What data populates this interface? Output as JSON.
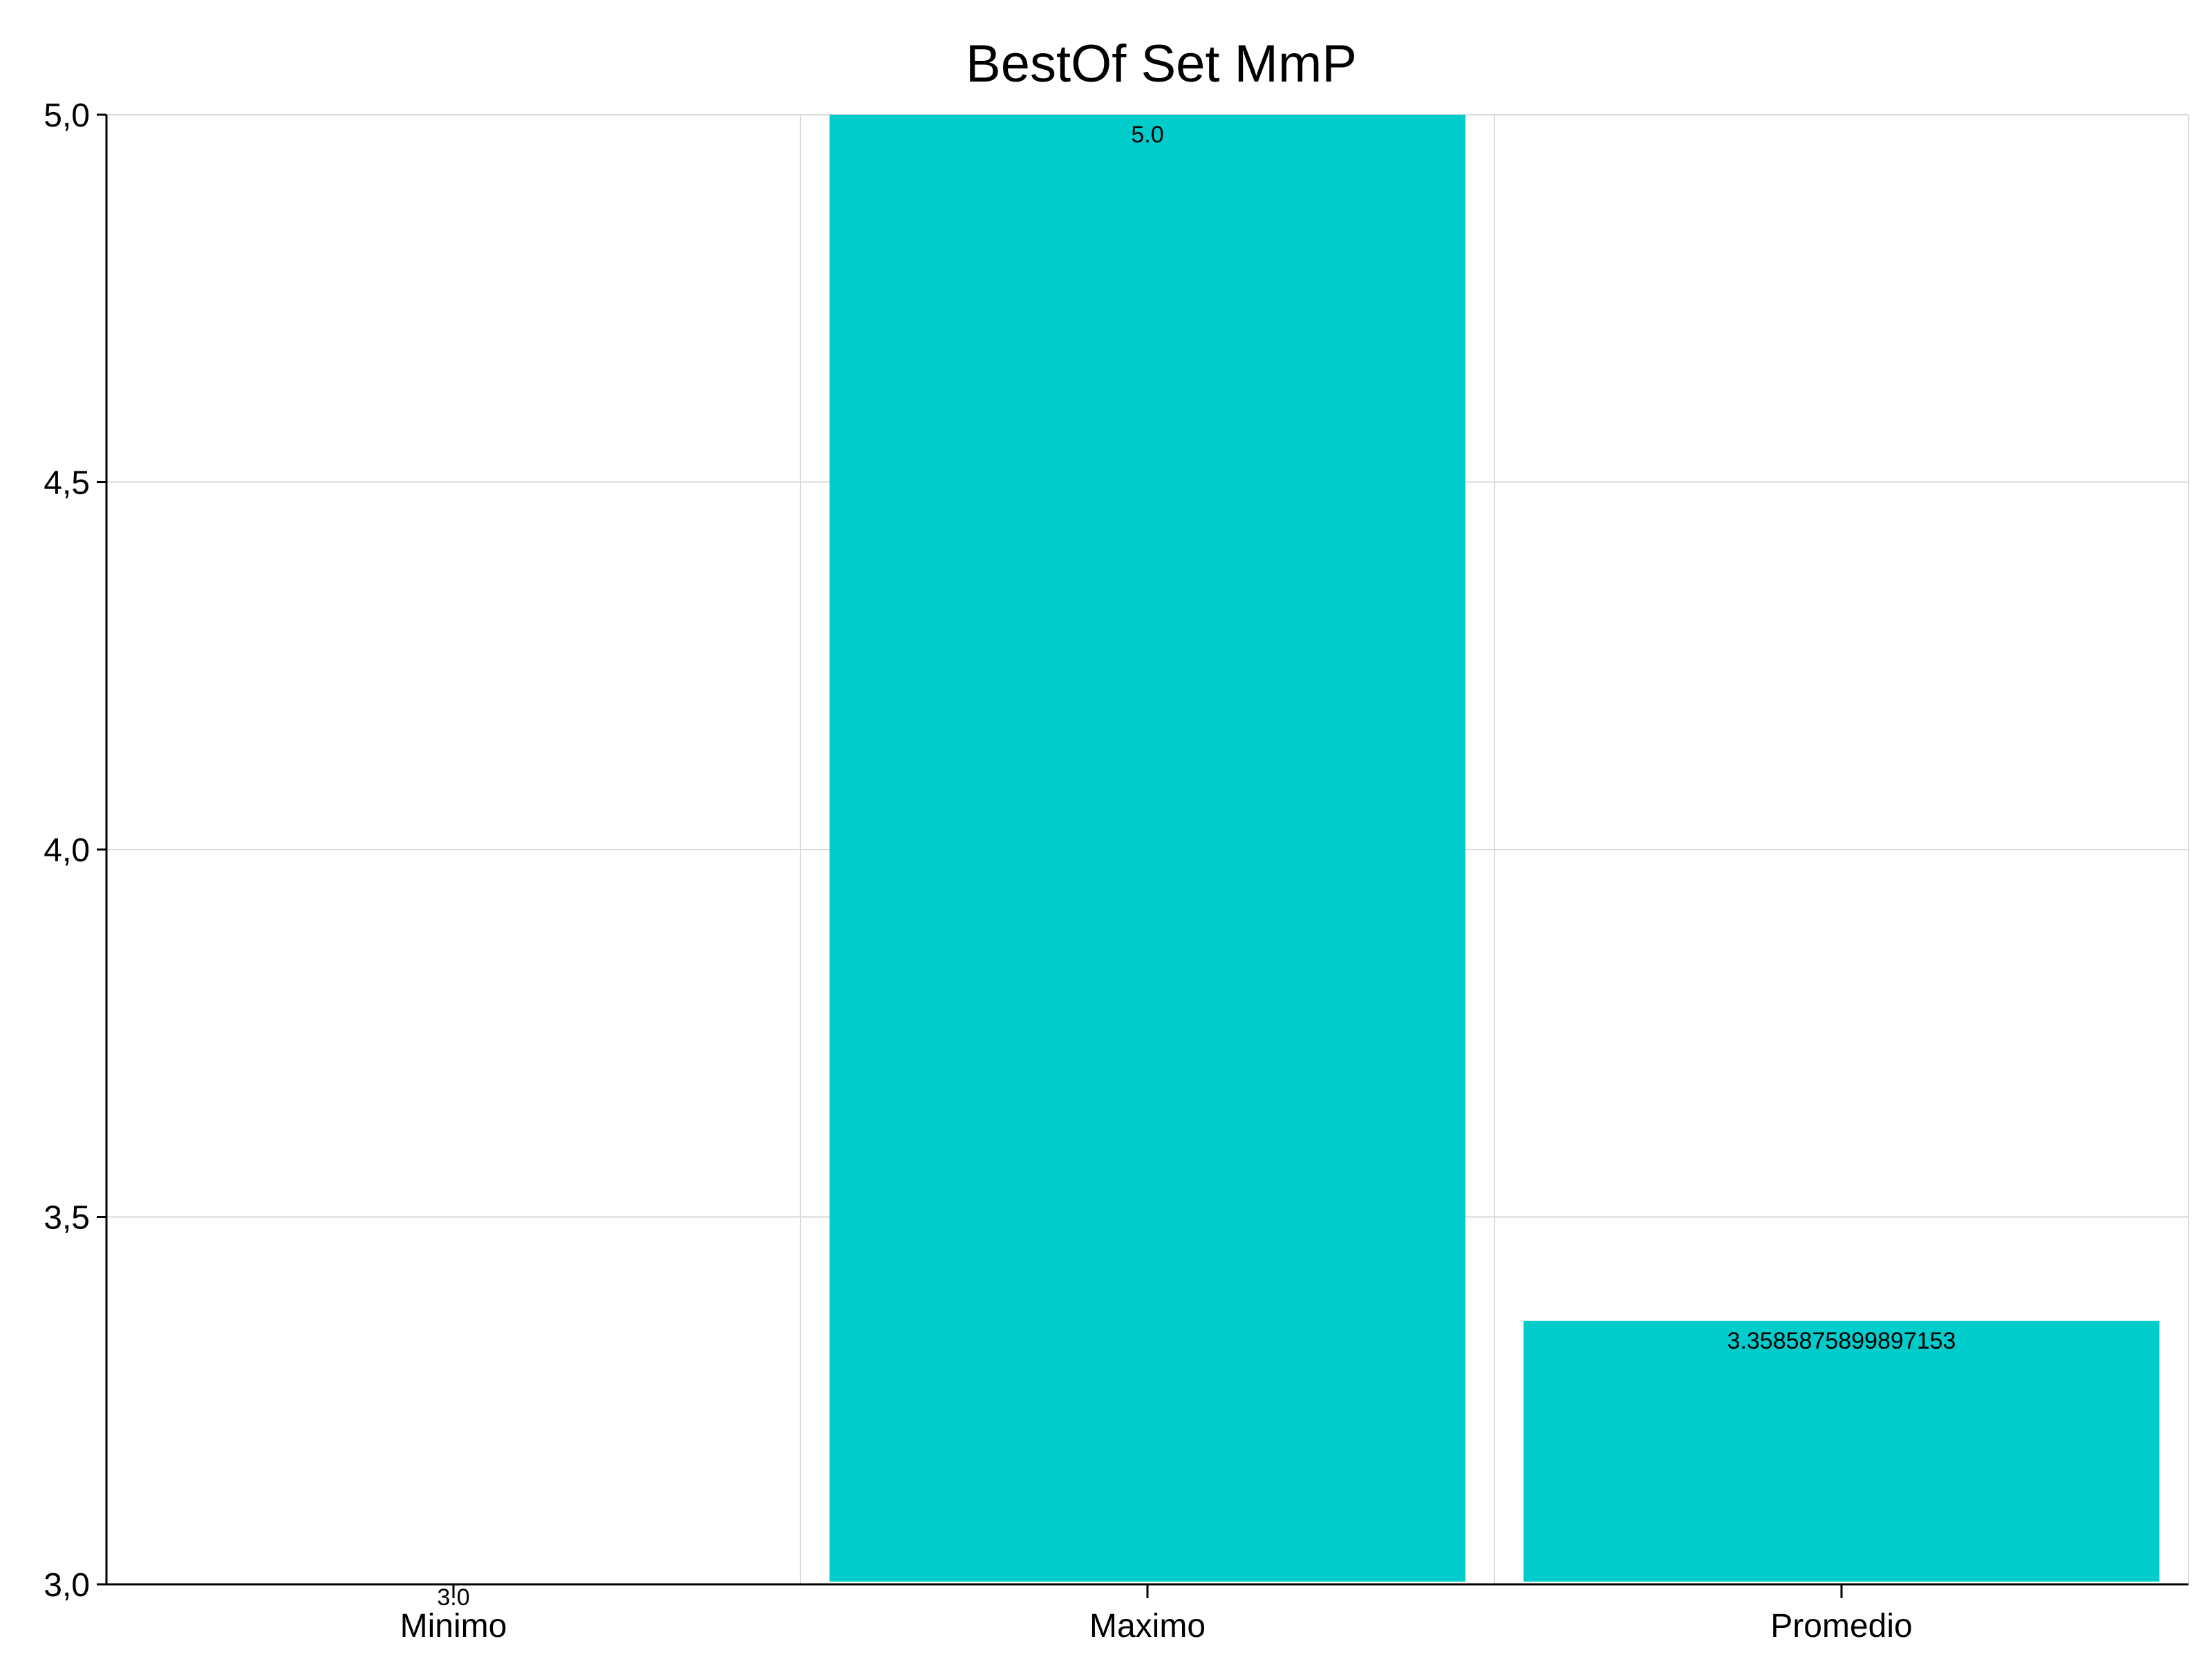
{
  "chart_data": {
    "type": "bar",
    "title": "BestOf Set MmP",
    "xlabel": "",
    "ylabel": "",
    "categories": [
      "Minimo",
      "Maximo",
      "Promedio"
    ],
    "values": [
      3.0,
      5.0,
      3.3585875899897153
    ],
    "value_labels": [
      "3.0",
      "5.0",
      "3.3585875899897153"
    ],
    "ylim": [
      3.0,
      5.0
    ],
    "yticks": [
      3.0,
      3.5,
      4.0,
      4.5,
      5.0
    ],
    "ytick_labels": [
      "3,0",
      "3,5",
      "4,0",
      "4,5",
      "5,0"
    ],
    "grid": true,
    "bar_color": "#00CCCC"
  }
}
